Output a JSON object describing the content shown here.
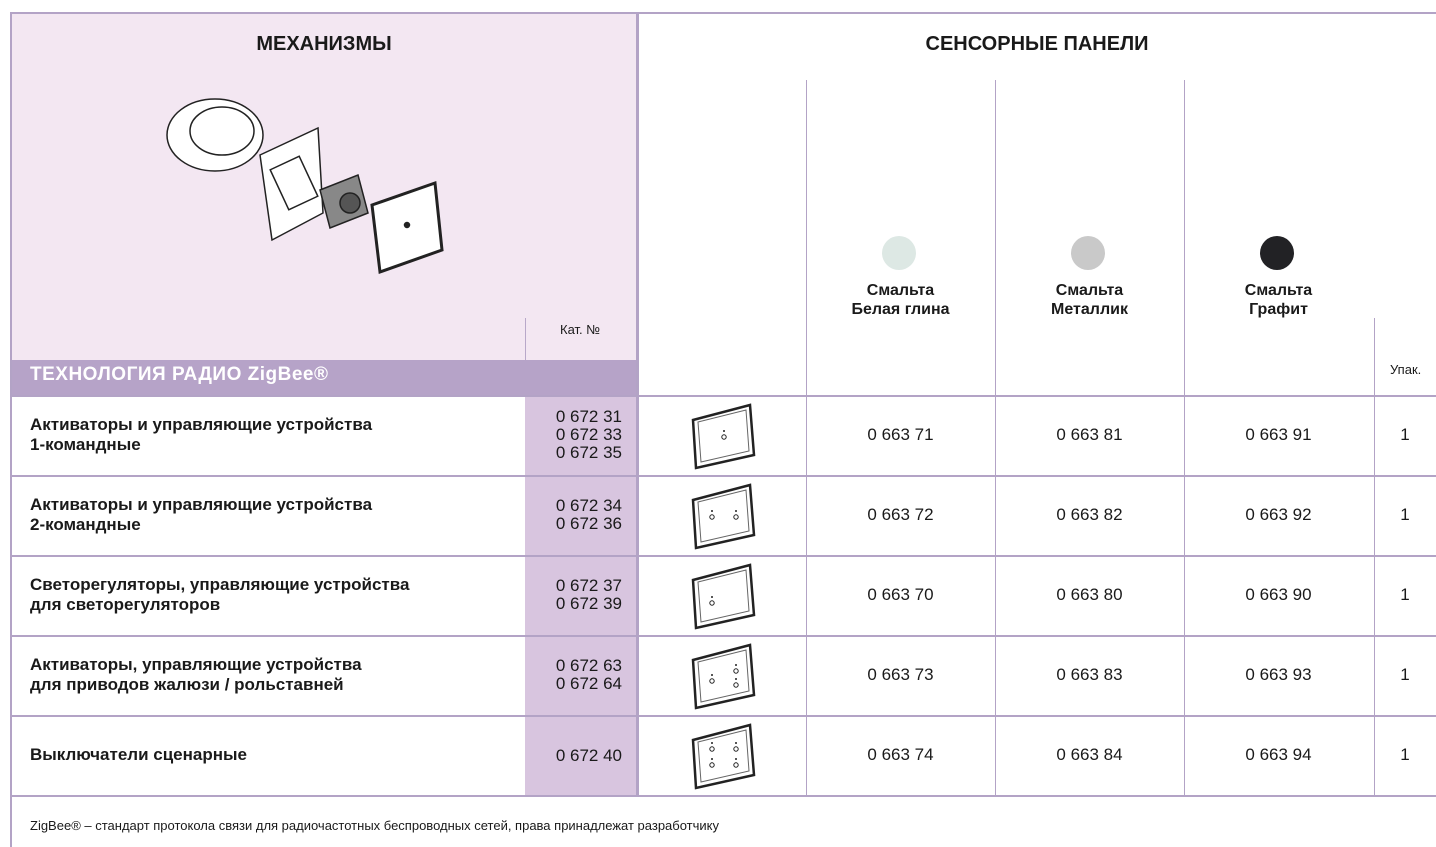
{
  "header": {
    "left_title": "МЕХАНИЗМЫ",
    "right_title": "СЕНСОРНЫЕ ПАНЕЛИ",
    "cat_label": "Кат. №",
    "pack_label": "Упак.",
    "section_title": "ТЕХНОЛОГИЯ РАДИО ZigBee®"
  },
  "columns": [
    {
      "lines": [
        "Смальта",
        "Белая глина"
      ],
      "color": "#dde8e4"
    },
    {
      "lines": [
        "Смальта",
        "Металлик"
      ],
      "color": "#c9c9c9"
    },
    {
      "lines": [
        "Смальта",
        "Графит"
      ],
      "color": "#222225"
    }
  ],
  "rows": [
    {
      "description": [
        "Активаторы и управляющие устройства",
        "1-командные"
      ],
      "cat": [
        "0 672 31",
        "0 672 33",
        "0 672 35"
      ],
      "codes": [
        "0 663 71",
        "0 663 81",
        "0 663 91"
      ],
      "pack": "1"
    },
    {
      "description": [
        "Активаторы и управляющие устройства",
        "2-командные"
      ],
      "cat": [
        "0 672 34",
        "0 672 36"
      ],
      "codes": [
        "0 663 72",
        "0 663 82",
        "0 663 92"
      ],
      "pack": "1"
    },
    {
      "description": [
        "Светорегуляторы, управляющие устройства",
        "для светорегуляторов"
      ],
      "cat": [
        "0 672 37",
        "0 672 39"
      ],
      "codes": [
        "0 663 70",
        "0 663 80",
        "0 663 90"
      ],
      "pack": "1"
    },
    {
      "description": [
        "Активаторы, управляющие устройства",
        "для приводов жалюзи / рольставней"
      ],
      "cat": [
        "0 672 63",
        "0 672 64"
      ],
      "codes": [
        "0 663 73",
        "0 663 83",
        "0 663 93"
      ],
      "pack": "1"
    },
    {
      "description": [
        "Выключатели сценарные"
      ],
      "cat": [
        "0 672 40"
      ],
      "codes": [
        "0 663 74",
        "0 663 84",
        "0 663 94"
      ],
      "pack": "1"
    }
  ],
  "footnote": "ZigBee® – стандарт протокола связи для радиочастотных беспроводных сетей, права принадлежат разработчику"
}
